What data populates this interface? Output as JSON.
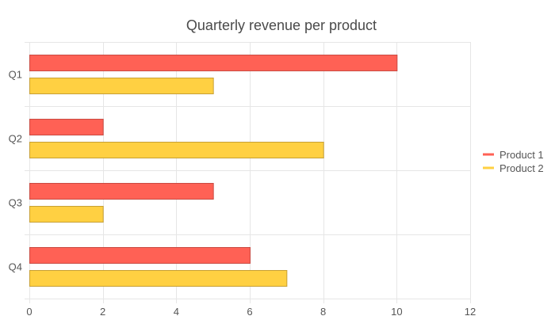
{
  "chart_data": {
    "type": "bar",
    "orientation": "horizontal",
    "title": "Quarterly revenue per product",
    "categories": [
      "Q1",
      "Q2",
      "Q3",
      "Q4"
    ],
    "series": [
      {
        "name": "Product 1",
        "values": [
          10,
          2,
          5,
          6
        ],
        "color": "#ff6155",
        "border": "#c94a42"
      },
      {
        "name": "Product 2",
        "values": [
          5,
          8,
          2,
          7
        ],
        "color": "#ffd042",
        "border": "#c7a034"
      }
    ],
    "xlim": [
      0,
      12
    ],
    "xticks": [
      0,
      2,
      4,
      6,
      8,
      10,
      12
    ],
    "grid": true,
    "legend_position": "right",
    "xlabel": "",
    "ylabel": ""
  }
}
